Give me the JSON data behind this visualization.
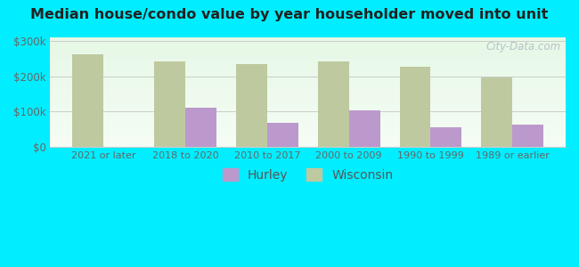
{
  "title": "Median house/condo value by year householder moved into unit",
  "categories": [
    "2021 or later",
    "2018 to 2020",
    "2010 to 2017",
    "2000 to 2009",
    "1990 to 1999",
    "1989 or earlier"
  ],
  "hurley_values": [
    null,
    110000,
    67000,
    103000,
    55000,
    62000
  ],
  "wisconsin_values": [
    262000,
    243000,
    234000,
    241000,
    228000,
    196000
  ],
  "hurley_color": "#bb99cc",
  "wisconsin_color": "#bec9a0",
  "background_color": "#00eeff",
  "ylabel_ticks": [
    "$0",
    "$100k",
    "$200k",
    "$300k"
  ],
  "ytick_values": [
    0,
    100000,
    200000,
    300000
  ],
  "ylim": [
    0,
    310000
  ],
  "bar_width": 0.38,
  "watermark": "City-Data.com",
  "legend_hurley": "Hurley",
  "legend_wisconsin": "Wisconsin"
}
